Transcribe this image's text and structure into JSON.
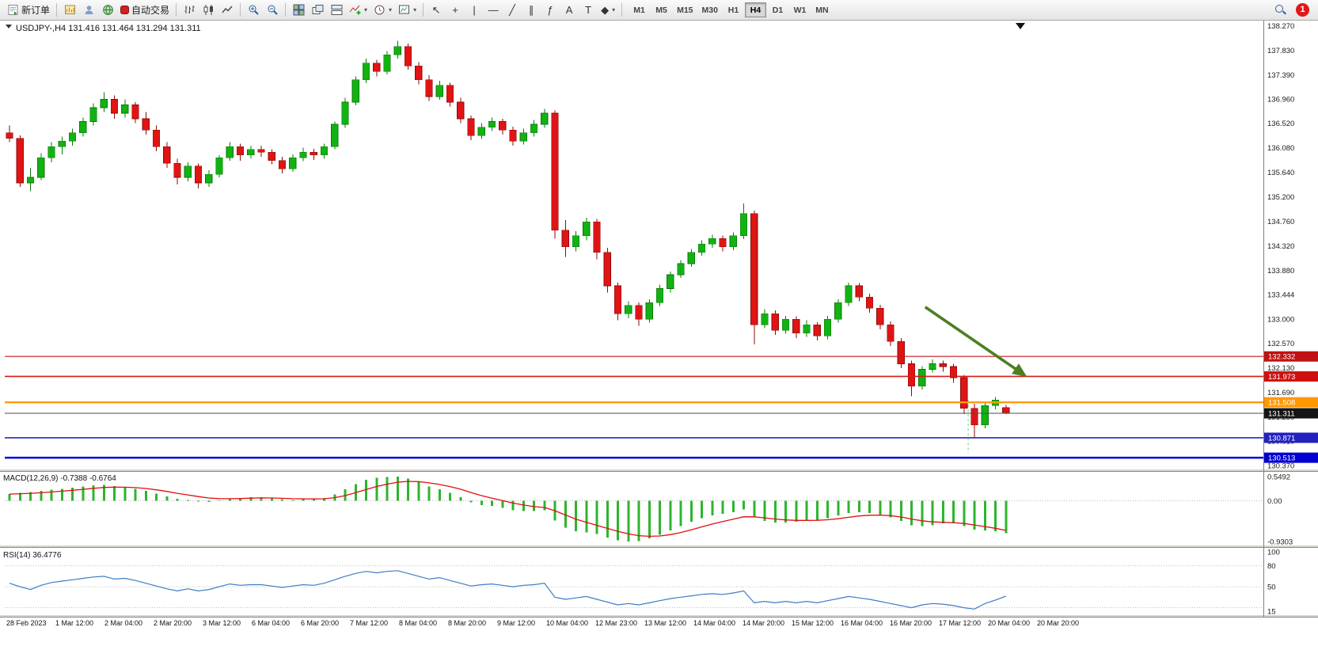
{
  "toolbar": {
    "new_order_label": "新订单",
    "autotrading_label": "自动交易",
    "timeframes": [
      "M1",
      "M5",
      "M15",
      "M30",
      "H1",
      "H4",
      "D1",
      "W1",
      "MN"
    ],
    "active_timeframe": "H4",
    "notification_count": "1"
  },
  "tools": {
    "cursor": "↖",
    "crosshair": "+",
    "vline": "|",
    "hline": "—",
    "trendline": "╱",
    "channel": "∥",
    "fibonacci": "ƒ",
    "text": "A",
    "label": "T",
    "shapes": "◆"
  },
  "icons": {
    "new_order": "order-form",
    "chart_window": "bar-chart-window",
    "accounts": "user-silhouette",
    "community": "globe",
    "autotrading": "red-stop-square",
    "bars": "ohlc-bars",
    "candles": "candlesticks",
    "line_chart": "line-polyline",
    "zoom_in": "magnifier-plus",
    "zoom_out": "magnifier-minus",
    "tile": "tiled-windows",
    "cascade": "cascade-windows",
    "arrange": "stacked-windows",
    "indicators": "chart-with-green-plus",
    "periods": "clock",
    "templates": "picture-chart",
    "search": "magnifier",
    "notification": "red-circle-count"
  },
  "chart": {
    "title": "USDJPY-,H4 131.416 131.464 131.294 131.311",
    "symbol": "USDJPY-",
    "timeframe": "H4"
  },
  "indicators": {
    "macd_label": "MACD(12,26,9) -0.7388 -0.6764",
    "rsi_label": "RSI(14) 36.4776",
    "macd_axis": [
      "0.5492",
      "0.00",
      "-0.9303"
    ],
    "rsi_axis": [
      "100",
      "80",
      "50",
      "15"
    ]
  },
  "colors": {
    "up": "#12b212",
    "up_border": "#0a7a0a",
    "down": "#e01414",
    "down_border": "#8e0a0a",
    "macd_hist": "#2db52d",
    "macd_signal": "#e01010",
    "rsi_line": "#3f7cc4",
    "arrow": "#4c7f21"
  },
  "chart_data": [
    {
      "type": "candlestick",
      "symbol": "USDJPY-",
      "timeframe": "H4",
      "current_ohlc": {
        "open": 131.416,
        "high": 131.464,
        "low": 131.294,
        "close": 131.311
      },
      "ylim": [
        130.33,
        138.35
      ],
      "y_axis_labels": [
        "138.270",
        "137.830",
        "137.390",
        "136.960",
        "136.520",
        "136.080",
        "135.640",
        "135.200",
        "134.760",
        "134.320",
        "133.880",
        "133.444",
        "133.000",
        "132.570",
        "132.130",
        "131.690",
        "131.250",
        "130.810",
        "130.370"
      ],
      "x_labels": [
        "28 Feb 2023",
        "1 Mar 12:00",
        "2 Mar 04:00",
        "2 Mar 20:00",
        "3 Mar 12:00",
        "6 Mar 04:00",
        "6 Mar 20:00",
        "7 Mar 12:00",
        "8 Mar 04:00",
        "8 Mar 20:00",
        "9 Mar 12:00",
        "10 Mar 04:00",
        "12 Mar 23:00",
        "13 Mar 12:00",
        "14 Mar 04:00",
        "14 Mar 20:00",
        "15 Mar 12:00",
        "16 Mar 04:00",
        "16 Mar 20:00",
        "17 Mar 12:00",
        "20 Mar 04:00",
        "20 Mar 20:00"
      ],
      "candles": [
        [
          136.35,
          136.48,
          136.18,
          136.25
        ],
        [
          136.25,
          136.3,
          135.38,
          135.45
        ],
        [
          135.45,
          135.72,
          135.3,
          135.55
        ],
        [
          135.55,
          135.98,
          135.5,
          135.9
        ],
        [
          135.9,
          136.18,
          135.82,
          136.1
        ],
        [
          136.1,
          136.28,
          135.96,
          136.2
        ],
        [
          136.2,
          136.42,
          136.12,
          136.35
        ],
        [
          136.35,
          136.62,
          136.28,
          136.55
        ],
        [
          136.55,
          136.88,
          136.48,
          136.8
        ],
        [
          136.8,
          137.08,
          136.72,
          136.95
        ],
        [
          136.95,
          137.02,
          136.6,
          136.7
        ],
        [
          136.7,
          136.95,
          136.62,
          136.85
        ],
        [
          136.85,
          136.9,
          136.52,
          136.6
        ],
        [
          136.6,
          136.72,
          136.32,
          136.4
        ],
        [
          136.4,
          136.48,
          136.02,
          136.1
        ],
        [
          136.1,
          136.18,
          135.72,
          135.8
        ],
        [
          135.8,
          135.88,
          135.42,
          135.55
        ],
        [
          135.55,
          135.82,
          135.48,
          135.75
        ],
        [
          135.75,
          135.8,
          135.35,
          135.45
        ],
        [
          135.45,
          135.68,
          135.38,
          135.6
        ],
        [
          135.6,
          135.95,
          135.55,
          135.9
        ],
        [
          135.9,
          136.18,
          135.85,
          136.1
        ],
        [
          136.1,
          136.15,
          135.85,
          135.95
        ],
        [
          135.95,
          136.12,
          135.88,
          136.05
        ],
        [
          136.05,
          136.12,
          135.92,
          136.0
        ],
        [
          136.0,
          136.05,
          135.78,
          135.85
        ],
        [
          135.85,
          135.92,
          135.62,
          135.7
        ],
        [
          135.7,
          135.96,
          135.65,
          135.9
        ],
        [
          135.9,
          136.08,
          135.84,
          136.0
        ],
        [
          136.0,
          136.06,
          135.86,
          135.95
        ],
        [
          135.95,
          136.15,
          135.88,
          136.1
        ],
        [
          136.1,
          136.55,
          136.05,
          136.5
        ],
        [
          136.5,
          136.98,
          136.44,
          136.9
        ],
        [
          136.9,
          137.36,
          136.84,
          137.3
        ],
        [
          137.3,
          137.68,
          137.24,
          137.6
        ],
        [
          137.6,
          137.66,
          137.36,
          137.45
        ],
        [
          137.45,
          137.82,
          137.4,
          137.75
        ],
        [
          137.75,
          138.0,
          137.68,
          137.9
        ],
        [
          137.9,
          137.95,
          137.48,
          137.55
        ],
        [
          137.55,
          137.62,
          137.22,
          137.3
        ],
        [
          137.3,
          137.38,
          136.92,
          137.0
        ],
        [
          137.0,
          137.28,
          136.94,
          137.2
        ],
        [
          137.2,
          137.25,
          136.82,
          136.9
        ],
        [
          136.9,
          136.98,
          136.52,
          136.6
        ],
        [
          136.6,
          136.66,
          136.22,
          136.3
        ],
        [
          136.3,
          136.52,
          136.24,
          136.45
        ],
        [
          136.45,
          136.62,
          136.38,
          136.55
        ],
        [
          136.55,
          136.6,
          136.32,
          136.4
        ],
        [
          136.4,
          136.46,
          136.12,
          136.2
        ],
        [
          136.2,
          136.42,
          136.14,
          136.35
        ],
        [
          136.35,
          136.58,
          136.28,
          136.5
        ],
        [
          136.5,
          136.78,
          136.44,
          136.7
        ],
        [
          136.7,
          136.75,
          134.45,
          134.6
        ],
        [
          134.6,
          134.78,
          134.12,
          134.3
        ],
        [
          134.3,
          134.58,
          134.22,
          134.5
        ],
        [
          134.5,
          134.82,
          134.42,
          134.75
        ],
        [
          134.75,
          134.8,
          134.08,
          134.2
        ],
        [
          134.2,
          134.28,
          133.48,
          133.6
        ],
        [
          133.6,
          133.66,
          132.98,
          133.1
        ],
        [
          133.1,
          133.32,
          133.02,
          133.25
        ],
        [
          133.25,
          133.3,
          132.88,
          133.0
        ],
        [
          133.0,
          133.36,
          132.94,
          133.3
        ],
        [
          133.3,
          133.62,
          133.24,
          133.55
        ],
        [
          133.55,
          133.86,
          133.48,
          133.8
        ],
        [
          133.8,
          134.06,
          133.74,
          134.0
        ],
        [
          134.0,
          134.26,
          133.94,
          134.2
        ],
        [
          134.2,
          134.42,
          134.14,
          134.35
        ],
        [
          134.35,
          134.52,
          134.28,
          134.45
        ],
        [
          134.45,
          134.5,
          134.22,
          134.3
        ],
        [
          134.3,
          134.56,
          134.24,
          134.5
        ],
        [
          134.5,
          135.08,
          134.44,
          134.9
        ],
        [
          134.9,
          134.95,
          132.55,
          132.9
        ],
        [
          132.9,
          133.18,
          132.84,
          133.1
        ],
        [
          133.1,
          133.16,
          132.72,
          132.8
        ],
        [
          132.8,
          133.06,
          132.74,
          133.0
        ],
        [
          133.0,
          133.05,
          132.66,
          132.75
        ],
        [
          132.75,
          132.98,
          132.68,
          132.9
        ],
        [
          132.9,
          132.95,
          132.62,
          132.7
        ],
        [
          132.7,
          133.06,
          132.64,
          133.0
        ],
        [
          133.0,
          133.36,
          132.94,
          133.3
        ],
        [
          133.3,
          133.66,
          133.24,
          133.6
        ],
        [
          133.6,
          133.65,
          133.32,
          133.4
        ],
        [
          133.4,
          133.46,
          133.12,
          133.2
        ],
        [
          133.2,
          133.26,
          132.82,
          132.9
        ],
        [
          132.9,
          132.96,
          132.52,
          132.6
        ],
        [
          132.6,
          132.66,
          132.12,
          132.2
        ],
        [
          132.2,
          132.26,
          131.62,
          131.8
        ],
        [
          131.8,
          132.16,
          131.74,
          132.1
        ],
        [
          132.1,
          132.28,
          132.04,
          132.2
        ],
        [
          132.2,
          132.26,
          132.06,
          132.15
        ],
        [
          132.15,
          132.2,
          131.86,
          131.95
        ],
        [
          131.95,
          132.0,
          131.3,
          131.4
        ],
        [
          131.4,
          131.48,
          130.88,
          131.1
        ],
        [
          131.1,
          131.52,
          131.04,
          131.45
        ],
        [
          131.45,
          131.6,
          131.38,
          131.55
        ],
        [
          131.416,
          131.464,
          131.294,
          131.311
        ]
      ],
      "hlines": [
        {
          "price": 132.332,
          "color": "#c01818",
          "width": 1.2,
          "label": "132.332",
          "tag_bg": "#c01212"
        },
        {
          "price": 131.973,
          "color": "#d81818",
          "width": 1.6,
          "label": "131.973",
          "tag_bg": "#d01010"
        },
        {
          "price": 131.508,
          "color": "#ff9c00",
          "width": 2.4,
          "label": "131.508",
          "tag_bg": "#ff9900"
        },
        {
          "price": 131.311,
          "color": "#4d4d4d",
          "width": 1.0,
          "label": "131.311",
          "tag_bg": "#151515"
        },
        {
          "price": 130.871,
          "color": "#2525cc",
          "width": 1.6,
          "label": "130.871",
          "tag_bg": "#2222c0"
        },
        {
          "price": 130.513,
          "color": "#0000dd",
          "width": 2.6,
          "label": "130.513",
          "tag_bg": "#0000d0"
        }
      ],
      "arrow": {
        "from": {
          "index": 87.3,
          "price": 133.22
        },
        "to": {
          "index": 96.6,
          "price": 132.02
        },
        "color": "#4c7f21"
      },
      "vline": {
        "index": 91.4,
        "from_price": 131.55,
        "to_price": 130.6,
        "color": "#6fcf6f"
      }
    },
    {
      "type": "bar",
      "name": "MACD(12,26,9)",
      "current_macd": -0.7388,
      "current_signal": -0.6764,
      "axis_values": [
        0.5492,
        0,
        -0.9303
      ],
      "values": [
        0.15,
        0.18,
        0.2,
        0.22,
        0.25,
        0.27,
        0.3,
        0.32,
        0.35,
        0.36,
        0.33,
        0.3,
        0.27,
        0.22,
        0.16,
        0.1,
        0.04,
        0.02,
        -0.02,
        -0.03,
        0.0,
        0.04,
        0.06,
        0.08,
        0.08,
        0.06,
        0.03,
        0.02,
        0.03,
        0.03,
        0.06,
        0.14,
        0.26,
        0.38,
        0.48,
        0.52,
        0.54,
        0.5492,
        0.5,
        0.42,
        0.32,
        0.26,
        0.18,
        0.08,
        -0.04,
        -0.1,
        -0.12,
        -0.16,
        -0.22,
        -0.24,
        -0.24,
        -0.22,
        -0.45,
        -0.62,
        -0.7,
        -0.72,
        -0.76,
        -0.84,
        -0.9,
        -0.9303,
        -0.92,
        -0.86,
        -0.78,
        -0.68,
        -0.58,
        -0.48,
        -0.4,
        -0.34,
        -0.3,
        -0.26,
        -0.2,
        -0.38,
        -0.46,
        -0.5,
        -0.5,
        -0.48,
        -0.45,
        -0.44,
        -0.4,
        -0.34,
        -0.28,
        -0.26,
        -0.28,
        -0.32,
        -0.38,
        -0.46,
        -0.56,
        -0.58,
        -0.56,
        -0.52,
        -0.52,
        -0.58,
        -0.66,
        -0.68,
        -0.7,
        -0.7388
      ],
      "signal": [
        0.15,
        0.158,
        0.168,
        0.181,
        0.198,
        0.216,
        0.237,
        0.258,
        0.281,
        0.301,
        0.308,
        0.306,
        0.297,
        0.278,
        0.248,
        0.211,
        0.168,
        0.131,
        0.093,
        0.062,
        0.047,
        0.045,
        0.049,
        0.057,
        0.063,
        0.062,
        0.054,
        0.045,
        0.041,
        0.039,
        0.044,
        0.068,
        0.116,
        0.182,
        0.257,
        0.323,
        0.377,
        0.42,
        0.44,
        0.435,
        0.406,
        0.37,
        0.322,
        0.262,
        0.186,
        0.115,
        0.056,
        0.002,
        -0.054,
        -0.1,
        -0.135,
        -0.156,
        -0.23,
        -0.327,
        -0.42,
        -0.495,
        -0.561,
        -0.631,
        -0.698,
        -0.756,
        -0.797,
        -0.813,
        -0.805,
        -0.774,
        -0.725,
        -0.664,
        -0.598,
        -0.533,
        -0.475,
        -0.421,
        -0.366,
        -0.369,
        -0.392,
        -0.419,
        -0.439,
        -0.449,
        -0.45,
        -0.447,
        -0.435,
        -0.412,
        -0.379,
        -0.349,
        -0.332,
        -0.329,
        -0.341,
        -0.371,
        -0.418,
        -0.459,
        -0.484,
        -0.493,
        -0.5,
        -0.52,
        -0.555,
        -0.59,
        -0.63,
        -0.6764
      ]
    },
    {
      "type": "line",
      "name": "RSI(14)",
      "current": 36.4776,
      "levels": [
        80,
        50,
        20
      ],
      "scale": [
        15,
        100
      ],
      "axis_values": [
        100,
        80,
        50,
        15
      ],
      "values": [
        55,
        50,
        46,
        52,
        56,
        58,
        60,
        62,
        64,
        65,
        61,
        62,
        59,
        55,
        51,
        47,
        44,
        47,
        44,
        46,
        50,
        54,
        52,
        53,
        53,
        51,
        49,
        51,
        53,
        52,
        55,
        60,
        65,
        69,
        72,
        70,
        72,
        73,
        69,
        65,
        61,
        63,
        59,
        55,
        51,
        53,
        54,
        52,
        50,
        52,
        53,
        55,
        35,
        32,
        34,
        36,
        32,
        28,
        24,
        26,
        24,
        27,
        30,
        33,
        35,
        37,
        39,
        40,
        39,
        41,
        44,
        27,
        29,
        27,
        29,
        27,
        29,
        27,
        30,
        33,
        36,
        34,
        32,
        29,
        26,
        23,
        20,
        24,
        26,
        25,
        23,
        20,
        18,
        26,
        31,
        36.48
      ]
    }
  ]
}
